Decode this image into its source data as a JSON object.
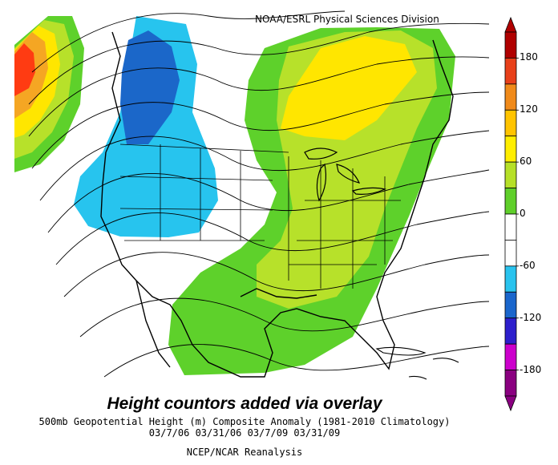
{
  "credit": "NOAA/ESRL Physical Sciences Division",
  "overlay_title": "Height countors added via overlay",
  "caption_line1": "500mb Geopotential Height (m) Composite Anomaly (1981-2010 Climatology)",
  "caption_line2": "03/7/06 03/31/06 03/7/09 03/31/09",
  "caption_line3": "NCEP/NCAR Reanalysis",
  "colorbar": {
    "tick_labels": [
      "180",
      "120",
      "60",
      "0",
      "-60",
      "-120",
      "-180"
    ],
    "colors": [
      "#b00000",
      "#e8401a",
      "#f08a1a",
      "#ffc400",
      "#ffee00",
      "#b6e028",
      "#5fcf2a",
      "#ffffff",
      "#ffffff",
      "#29c3ee",
      "#1a66cc",
      "#2d1fcc",
      "#cc00cc",
      "#8a0080"
    ]
  },
  "anomaly_colors": {
    "strong_positive": "#ff3b12",
    "positive_high": "#f5a623",
    "positive_mid": "#ffe600",
    "positive_low": "#b7e12a",
    "positive_weak": "#5ed12b",
    "negative_weak": "#27c4ee",
    "negative_mid": "#1b67c9"
  }
}
